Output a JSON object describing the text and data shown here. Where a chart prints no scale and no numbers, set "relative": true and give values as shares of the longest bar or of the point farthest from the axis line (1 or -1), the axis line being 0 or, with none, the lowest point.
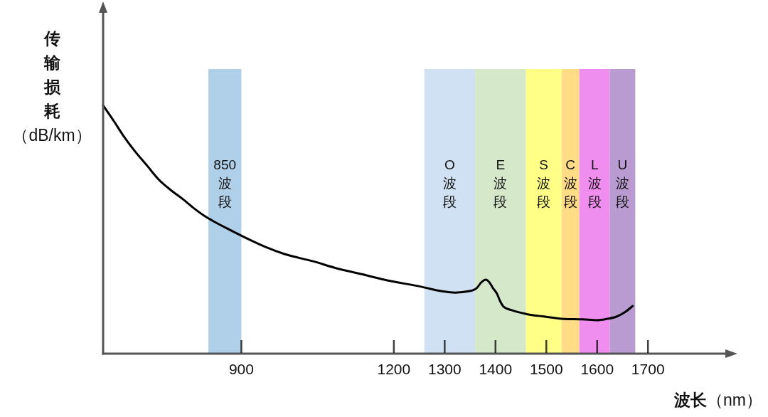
{
  "chart_data": {
    "type": "line",
    "xlabel": "波长（nm）",
    "ylabel": "传输损耗（dB/km）",
    "relative": true,
    "x": [
      628,
      649,
      667,
      691,
      715,
      737,
      761,
      785,
      807,
      831,
      848,
      877,
      911,
      947,
      985,
      1041,
      1087,
      1135,
      1181,
      1255,
      1293,
      1321,
      1349,
      1363,
      1372,
      1381,
      1388,
      1395,
      1403,
      1409,
      1416,
      1432,
      1460,
      1498,
      1535,
      1572,
      1600,
      1619,
      1638,
      1656,
      1670
    ],
    "series": [
      {
        "color": "#000000",
        "values": [
          1.0,
          0.937,
          0.88,
          0.814,
          0.756,
          0.702,
          0.659,
          0.622,
          0.585,
          0.55,
          0.53,
          0.499,
          0.464,
          0.43,
          0.401,
          0.372,
          0.344,
          0.321,
          0.298,
          0.269,
          0.252,
          0.246,
          0.252,
          0.264,
          0.287,
          0.298,
          0.287,
          0.264,
          0.241,
          0.212,
          0.189,
          0.175,
          0.16,
          0.149,
          0.14,
          0.138,
          0.135,
          0.14,
          0.149,
          0.169,
          0.192
        ]
      }
    ],
    "xlim": [
      628,
      1855
    ],
    "xticks": [
      900,
      1200,
      1300,
      1400,
      1500,
      1600,
      1700
    ],
    "bands": [
      {
        "axis": "x",
        "from": 835,
        "to": 900,
        "label": "850波段",
        "color": "#b0cfe9"
      },
      {
        "axis": "x",
        "from": 1260,
        "to": 1360,
        "label": "O波段",
        "color": "#cfe1f2"
      },
      {
        "axis": "x",
        "from": 1360,
        "to": 1460,
        "label": "E波段",
        "color": "#d5e8ca"
      },
      {
        "axis": "x",
        "from": 1460,
        "to": 1530,
        "label": "S波段",
        "color": "#ffff88"
      },
      {
        "axis": "x",
        "from": 1530,
        "to": 1565,
        "label": "C波段",
        "color": "#ffdc85"
      },
      {
        "axis": "x",
        "from": 1565,
        "to": 1625,
        "label": "L波段",
        "color": "#ef8eee"
      },
      {
        "axis": "x",
        "from": 1625,
        "to": 1675,
        "label": "U波段",
        "color": "#b99bd2"
      }
    ],
    "grid": false
  }
}
